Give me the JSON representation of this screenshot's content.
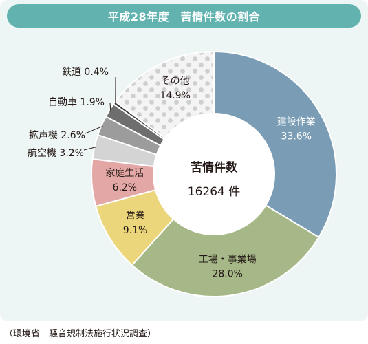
{
  "title": "平成28年度　苦情件数の割合",
  "source": "（環境省　騒音規制法施行状況調査）",
  "center": {
    "label": "苦情件数",
    "value": "16264 件"
  },
  "chart_data": {
    "type": "pie",
    "title": "平成28年度　苦情件数の割合",
    "slices": [
      {
        "label": "建設作業",
        "value": 33.6,
        "display": "33.6%",
        "color": "#7a9db5",
        "label_color": "#ffffff"
      },
      {
        "label": "工場・事業場",
        "value": 28.0,
        "display": "28.0%",
        "color": "#a6b888",
        "label_color": "#231815"
      },
      {
        "label": "営業",
        "value": 9.1,
        "display": "9.1%",
        "color": "#ecd67c",
        "label_color": "#231815"
      },
      {
        "label": "家庭生活",
        "value": 6.2,
        "display": "6.2%",
        "color": "#e3a7a5",
        "label_color": "#231815"
      },
      {
        "label": "航空機",
        "value": 3.2,
        "display": "3.2%",
        "color": "#d4d4d4",
        "label_color": "#231815"
      },
      {
        "label": "拡声機",
        "value": 2.6,
        "display": "2.6%",
        "color": "#9c9c9c",
        "label_color": "#231815"
      },
      {
        "label": "自動車",
        "value": 1.9,
        "display": "1.9%",
        "color": "#6e6e6e",
        "label_color": "#231815"
      },
      {
        "label": "鉄道",
        "value": 0.4,
        "display": "0.4%",
        "color": "#3a3a3a",
        "label_color": "#231815"
      },
      {
        "label": "その他",
        "value": 14.9,
        "display": "14.9%",
        "color": "#f2f2f2",
        "pattern": "dots",
        "label_color": "#231815"
      }
    ]
  }
}
